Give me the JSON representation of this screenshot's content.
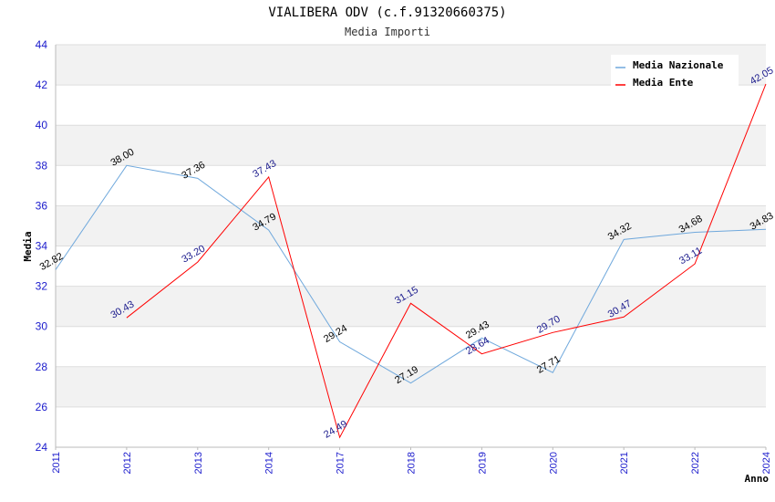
{
  "chart_data": {
    "type": "line",
    "title": "VIALIBERA ODV (c.f.91320660375)",
    "subtitle": "Media Importi",
    "ylabel": "Media",
    "xlabel": "Anno",
    "ylim": [
      24,
      44
    ],
    "yticks": [
      "24",
      "26",
      "28",
      "30",
      "32",
      "34",
      "36",
      "38",
      "40",
      "42",
      "44"
    ],
    "categories": [
      "2011",
      "2012",
      "2013",
      "2014",
      "2017",
      "2018",
      "2019",
      "2020",
      "2021",
      "2022",
      "2024"
    ],
    "grid": true,
    "legend_position": "top-right",
    "series": [
      {
        "name": "Media Nazionale",
        "color": "#6fa8dc",
        "values": [
          32.82,
          38.0,
          37.36,
          34.79,
          29.24,
          27.19,
          29.43,
          27.71,
          34.32,
          34.68,
          34.83
        ],
        "labels": [
          "32.82",
          "38.00",
          "37.36",
          "34.79",
          "29.24",
          "27.19",
          "29.43",
          "27.71",
          "34.32",
          "34.68",
          "34.83"
        ]
      },
      {
        "name": "Media Ente",
        "color": "#ff0000",
        "values": [
          null,
          30.43,
          33.2,
          37.43,
          24.49,
          31.15,
          28.64,
          29.7,
          30.47,
          33.11,
          42.05
        ],
        "labels": [
          null,
          "30.43",
          "33.20",
          "37.43",
          "24.49",
          "31.15",
          "28.64",
          "29.70",
          "30.47",
          "33.11",
          "42.05"
        ]
      }
    ]
  }
}
